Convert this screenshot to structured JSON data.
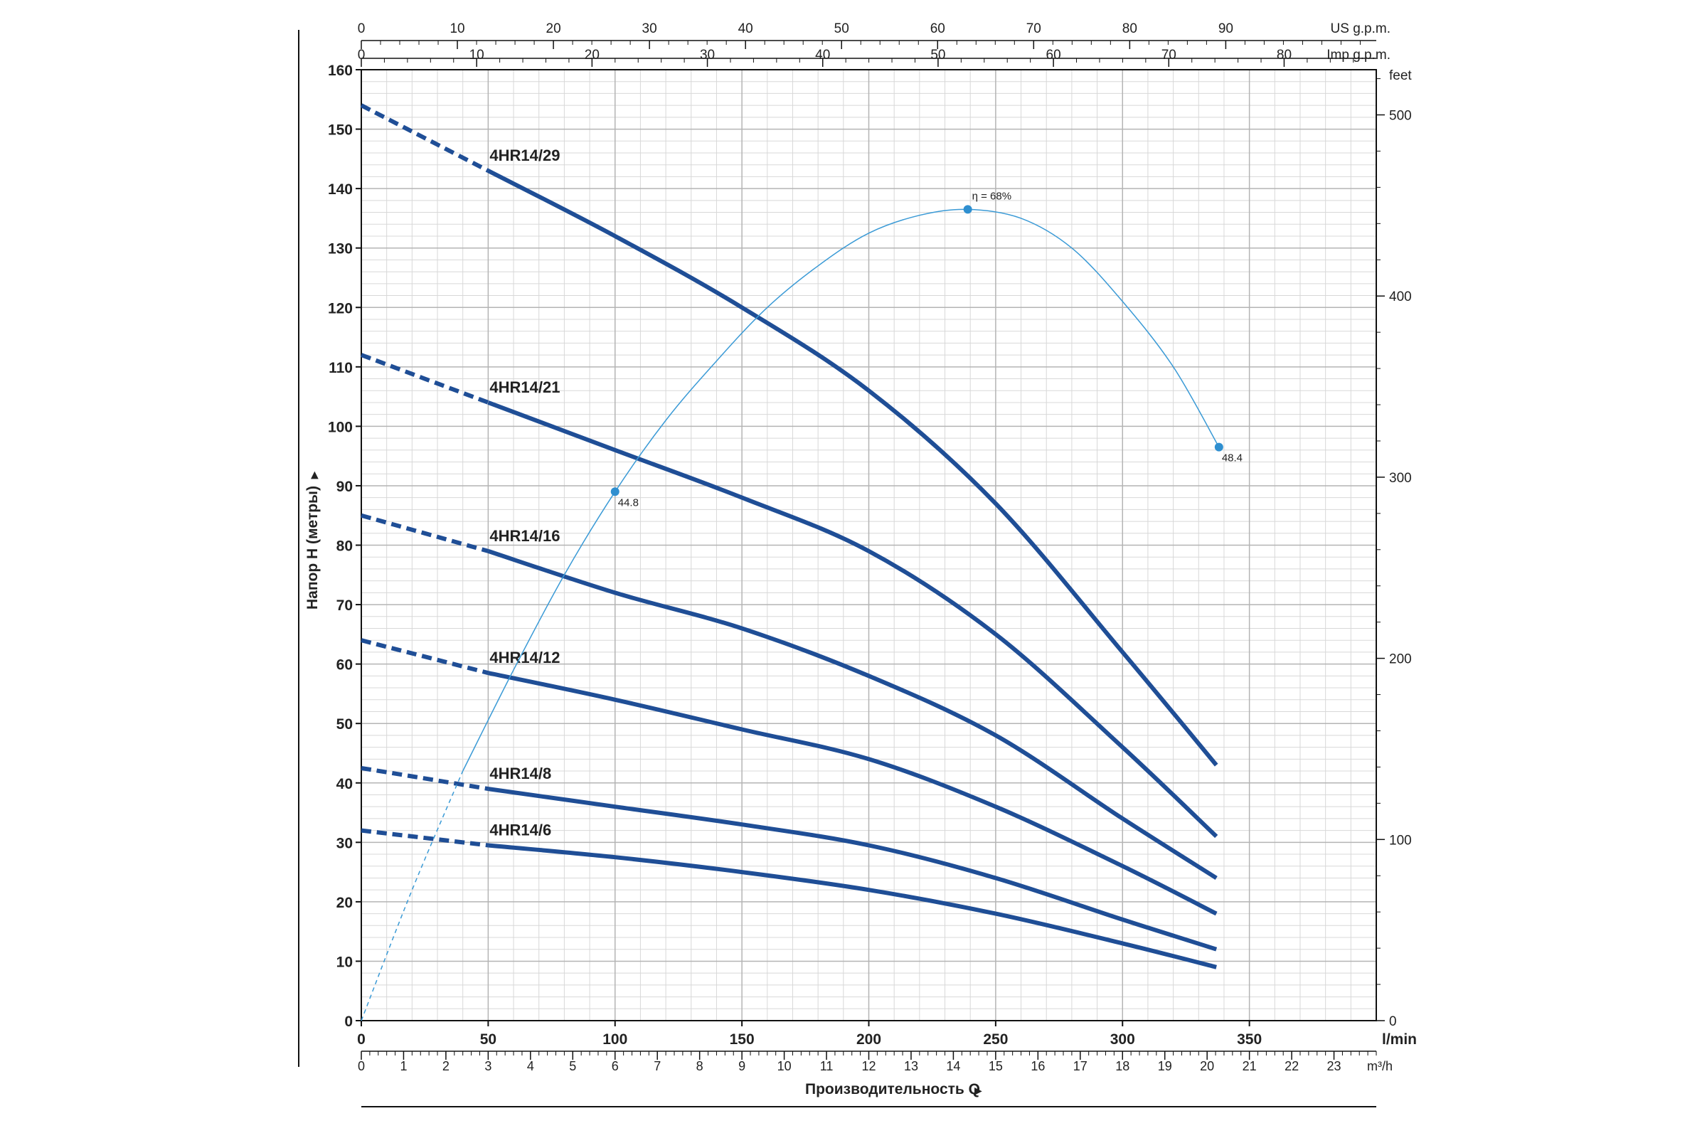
{
  "chart_data": {
    "type": "line",
    "title": "",
    "xlabel": "Производительность Q",
    "ylabel": "Напор H (метры)",
    "x_unit": "l/min",
    "xlim": [
      0,
      400
    ],
    "ylim": [
      0,
      160
    ],
    "grid": true,
    "x_ticks": [
      "0",
      "50",
      "100",
      "150",
      "200",
      "250",
      "300",
      "350"
    ],
    "y_ticks": [
      "0",
      "10",
      "20",
      "30",
      "40",
      "50",
      "60",
      "70",
      "80",
      "90",
      "100",
      "110",
      "120",
      "130",
      "140",
      "150",
      "160"
    ],
    "secondary_axes": {
      "us_gpm": {
        "unit": "US g.p.m.",
        "ticks": [
          "0",
          "10",
          "20",
          "30",
          "40",
          "50",
          "60",
          "70",
          "80",
          "90"
        ]
      },
      "imp_gpm": {
        "unit": "Imp g.p.m.",
        "ticks": [
          "0",
          "10",
          "20",
          "30",
          "40",
          "50",
          "60",
          "70",
          "80"
        ]
      },
      "m3h": {
        "unit": "m³/h",
        "ticks": [
          "0",
          "1",
          "2",
          "3",
          "4",
          "5",
          "6",
          "7",
          "8",
          "9",
          "10",
          "11",
          "12",
          "13",
          "14",
          "15",
          "16",
          "17",
          "18",
          "19",
          "20",
          "21",
          "22",
          "23"
        ]
      },
      "feet": {
        "unit": "feet",
        "ticks": [
          "0",
          "100",
          "200",
          "300",
          "400",
          "500"
        ]
      }
    },
    "dashed_until_x": 50,
    "series": [
      {
        "name": "4HR14/29",
        "x": [
          0,
          50,
          100,
          150,
          200,
          250,
          300,
          337
        ],
        "y": [
          154,
          143,
          132,
          120,
          106,
          87,
          62,
          43
        ]
      },
      {
        "name": "4HR14/21",
        "x": [
          0,
          50,
          100,
          150,
          200,
          250,
          300,
          337
        ],
        "y": [
          112,
          104,
          96,
          88,
          79,
          65,
          46,
          31
        ]
      },
      {
        "name": "4HR14/16",
        "x": [
          0,
          50,
          100,
          150,
          200,
          250,
          300,
          337
        ],
        "y": [
          85,
          79,
          72,
          66,
          58,
          48,
          34,
          24
        ]
      },
      {
        "name": "4HR14/12",
        "x": [
          0,
          50,
          100,
          150,
          200,
          250,
          300,
          337
        ],
        "y": [
          64,
          58.5,
          54,
          49,
          44,
          36,
          26,
          18
        ]
      },
      {
        "name": "4HR14/8",
        "x": [
          0,
          50,
          100,
          150,
          200,
          250,
          300,
          337
        ],
        "y": [
          42.5,
          39,
          36,
          33,
          29.5,
          24,
          17,
          12
        ]
      },
      {
        "name": "4HR14/6",
        "x": [
          0,
          50,
          100,
          150,
          200,
          250,
          300,
          337
        ],
        "y": [
          32,
          29.5,
          27.5,
          25,
          22,
          18,
          13,
          9
        ]
      }
    ],
    "efficiency_curve": {
      "x": [
        0,
        20,
        40,
        60,
        80,
        100,
        120,
        140,
        160,
        180,
        200,
        220,
        239,
        260,
        280,
        300,
        320,
        338
      ],
      "y": [
        0,
        22,
        42,
        59,
        75,
        89,
        101,
        111,
        120,
        127,
        132.5,
        135.5,
        136.5,
        135,
        130,
        121,
        110,
        96.5
      ],
      "dashed_until_x": 40,
      "points": [
        {
          "x": 100,
          "y": 89,
          "label": "44.8"
        },
        {
          "x": 239,
          "y": 136.5,
          "label": "η = 68%"
        },
        {
          "x": 338,
          "y": 96.5,
          "label": "48.4"
        }
      ]
    }
  }
}
